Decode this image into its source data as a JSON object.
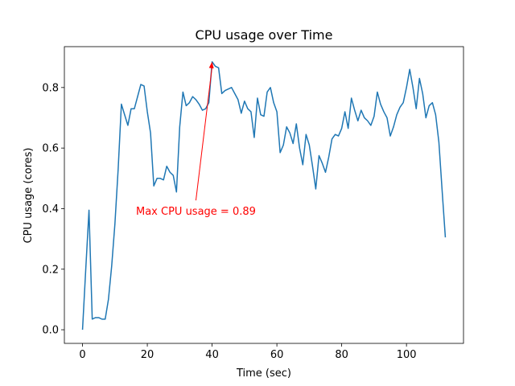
{
  "chart_data": {
    "type": "line",
    "title": "CPU usage over Time",
    "xlabel": "Time (sec)",
    "ylabel": "CPU usage (cores)",
    "xlim": [
      -5.6,
      117.6
    ],
    "ylim": [
      -0.045,
      0.935
    ],
    "xticks": [
      0,
      20,
      40,
      60,
      80,
      100
    ],
    "yticks": [
      0.0,
      0.2,
      0.4,
      0.6,
      0.8
    ],
    "ytick_labels": [
      "0.0",
      "0.2",
      "0.4",
      "0.6",
      "0.8"
    ],
    "grid": false,
    "series": [
      {
        "name": "CPU usage",
        "color": "#1f77b4",
        "x": [
          0,
          1,
          2,
          3,
          4,
          5,
          6,
          7,
          8,
          9,
          10,
          11,
          12,
          13,
          14,
          15,
          16,
          17,
          18,
          19,
          20,
          21,
          22,
          23,
          24,
          25,
          26,
          27,
          28,
          29,
          30,
          31,
          32,
          33,
          34,
          35,
          36,
          37,
          38,
          39,
          40,
          41,
          42,
          43,
          44,
          45,
          46,
          47,
          48,
          49,
          50,
          51,
          52,
          53,
          54,
          55,
          56,
          57,
          58,
          59,
          60,
          61,
          62,
          63,
          64,
          65,
          66,
          67,
          68,
          69,
          70,
          71,
          72,
          73,
          74,
          75,
          76,
          77,
          78,
          79,
          80,
          81,
          82,
          83,
          84,
          85,
          86,
          87,
          88,
          89,
          90,
          91,
          92,
          93,
          94,
          95,
          96,
          97,
          98,
          99,
          100,
          101,
          102,
          103,
          104,
          105,
          106,
          107,
          108,
          109,
          110,
          111,
          112
        ],
        "y": [
          0.0,
          0.2,
          0.395,
          0.035,
          0.04,
          0.04,
          0.035,
          0.035,
          0.1,
          0.21,
          0.35,
          0.53,
          0.745,
          0.71,
          0.675,
          0.73,
          0.73,
          0.77,
          0.81,
          0.805,
          0.72,
          0.65,
          0.475,
          0.5,
          0.5,
          0.495,
          0.54,
          0.52,
          0.51,
          0.455,
          0.67,
          0.785,
          0.74,
          0.75,
          0.77,
          0.76,
          0.745,
          0.725,
          0.73,
          0.75,
          0.885,
          0.87,
          0.865,
          0.78,
          0.79,
          0.795,
          0.8,
          0.78,
          0.76,
          0.715,
          0.755,
          0.73,
          0.72,
          0.635,
          0.765,
          0.71,
          0.705,
          0.785,
          0.8,
          0.75,
          0.72,
          0.585,
          0.61,
          0.67,
          0.65,
          0.615,
          0.68,
          0.6,
          0.545,
          0.645,
          0.61,
          0.54,
          0.465,
          0.575,
          0.55,
          0.52,
          0.57,
          0.63,
          0.645,
          0.64,
          0.665,
          0.72,
          0.665,
          0.765,
          0.725,
          0.69,
          0.725,
          0.7,
          0.69,
          0.675,
          0.705,
          0.785,
          0.745,
          0.72,
          0.7,
          0.64,
          0.67,
          0.71,
          0.735,
          0.75,
          0.8,
          0.86,
          0.8,
          0.73,
          0.83,
          0.78,
          0.7,
          0.74,
          0.75,
          0.71,
          0.62,
          0.46,
          0.305
        ]
      }
    ],
    "annotation": {
      "text": "Max CPU usage = 0.89",
      "color": "#ff0000",
      "point": [
        40,
        0.885
      ],
      "text_anchor_point": [
        35,
        0.39
      ]
    }
  }
}
